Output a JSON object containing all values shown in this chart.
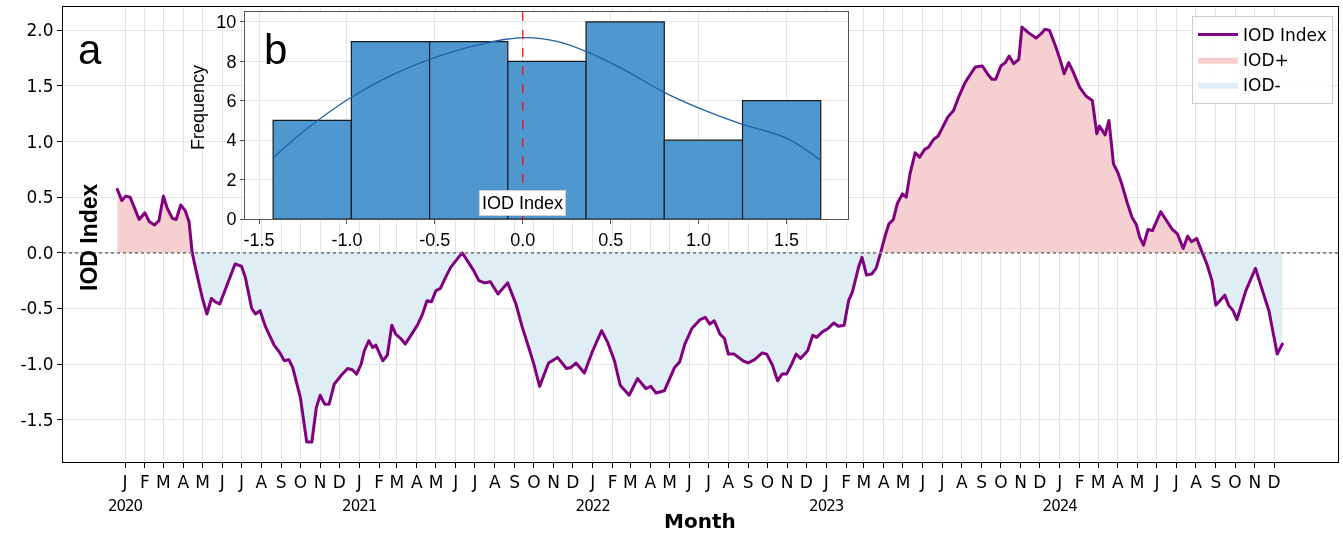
{
  "chart_data": [
    {
      "type": "line",
      "xlabel": "Month",
      "ylabel": "IOD Index",
      "annotations": [
        "a"
      ],
      "grid": true,
      "legend": "top right",
      "xlim": [
        "2019-09-26",
        "2025-03-11"
      ],
      "ylim": [
        -1.88,
        2.21
      ],
      "xticks": [
        {
          "value": "2020-01",
          "label": "J\n2020"
        },
        {
          "value": "2020-02",
          "label": "F"
        },
        {
          "value": "2020-03",
          "label": "M"
        },
        {
          "value": "2020-04",
          "label": "A"
        },
        {
          "value": "2020-05",
          "label": "M"
        },
        {
          "value": "2020-06",
          "label": "J"
        },
        {
          "value": "2020-07",
          "label": "J"
        },
        {
          "value": "2020-08",
          "label": "A"
        },
        {
          "value": "2020-09",
          "label": "S"
        },
        {
          "value": "2020-10",
          "label": "O"
        },
        {
          "value": "2020-11",
          "label": "N"
        },
        {
          "value": "2020-12",
          "label": "D"
        },
        {
          "value": "2021-01",
          "label": "J\n2021"
        },
        {
          "value": "2021-02",
          "label": "F"
        },
        {
          "value": "2021-03",
          "label": "M"
        },
        {
          "value": "2021-04",
          "label": "A"
        },
        {
          "value": "2021-05",
          "label": "M"
        },
        {
          "value": "2021-06",
          "label": "J"
        },
        {
          "value": "2021-07",
          "label": "J"
        },
        {
          "value": "2021-08",
          "label": "A"
        },
        {
          "value": "2021-09",
          "label": "S"
        },
        {
          "value": "2021-10",
          "label": "O"
        },
        {
          "value": "2021-11",
          "label": "N"
        },
        {
          "value": "2021-12",
          "label": "D"
        },
        {
          "value": "2022-01",
          "label": "J\n2022"
        },
        {
          "value": "2022-02",
          "label": "F"
        },
        {
          "value": "2022-03",
          "label": "M"
        },
        {
          "value": "2022-04",
          "label": "A"
        },
        {
          "value": "2022-05",
          "label": "M"
        },
        {
          "value": "2022-06",
          "label": "J"
        },
        {
          "value": "2022-07",
          "label": "J"
        },
        {
          "value": "2022-08",
          "label": "A"
        },
        {
          "value": "2022-09",
          "label": "S"
        },
        {
          "value": "2022-10",
          "label": "O"
        },
        {
          "value": "2022-11",
          "label": "N"
        },
        {
          "value": "2022-12",
          "label": "D"
        },
        {
          "value": "2023-01",
          "label": "J\n2023"
        },
        {
          "value": "2023-02",
          "label": "F"
        },
        {
          "value": "2023-03",
          "label": "M"
        },
        {
          "value": "2023-04",
          "label": "A"
        },
        {
          "value": "2023-05",
          "label": "M"
        },
        {
          "value": "2023-06",
          "label": "J"
        },
        {
          "value": "2023-07",
          "label": "J"
        },
        {
          "value": "2023-08",
          "label": "A"
        },
        {
          "value": "2023-09",
          "label": "S"
        },
        {
          "value": "2023-10",
          "label": "O"
        },
        {
          "value": "2023-11",
          "label": "N"
        },
        {
          "value": "2023-12",
          "label": "D"
        },
        {
          "value": "2024-01",
          "label": "J\n2024"
        },
        {
          "value": "2024-02",
          "label": "F"
        },
        {
          "value": "2024-03",
          "label": "M"
        },
        {
          "value": "2024-04",
          "label": "A"
        },
        {
          "value": "2024-05",
          "label": "M"
        },
        {
          "value": "2024-06",
          "label": "J"
        },
        {
          "value": "2024-07",
          "label": "J"
        },
        {
          "value": "2024-08",
          "label": "A"
        },
        {
          "value": "2024-09",
          "label": "S"
        },
        {
          "value": "2024-10",
          "label": "O"
        },
        {
          "value": "2024-11",
          "label": "N"
        },
        {
          "value": "2024-12",
          "label": "D"
        }
      ],
      "yticks": [
        {
          "value": 2,
          "label": "2.0"
        },
        1.5,
        {
          "value": 1,
          "label": "1.0"
        },
        0.5,
        {
          "value": 0,
          "label": "0.0"
        },
        -0.5,
        {
          "value": -1,
          "label": "-1.0"
        },
        -1.5
      ],
      "ref_lines": [
        {
          "axis": "y",
          "value": 0,
          "color": "#808080",
          "line_style": "dotted"
        }
      ],
      "x": [
        "2019-12-20",
        "2019-12-27",
        "2020-01-02",
        "2020-01-09",
        "2020-01-16",
        "2020-01-23",
        "2020-02-01",
        "2020-02-08",
        "2020-02-16",
        "2020-02-23",
        "2020-03-01",
        "2020-03-07",
        "2020-03-15",
        "2020-03-21",
        "2020-03-28",
        "2020-04-04",
        "2020-04-10",
        "2020-04-15",
        "2020-04-21",
        "2020-05-01",
        "2020-05-08",
        "2020-05-15",
        "2020-05-21",
        "2020-05-28",
        "2020-06-09",
        "2020-06-21",
        "2020-07-01",
        "2020-07-07",
        "2020-07-17",
        "2020-07-23",
        "2020-07-30",
        "2020-08-08",
        "2020-08-21",
        "2020-08-29",
        "2020-09-06",
        "2020-09-13",
        "2020-09-19",
        "2020-10-01",
        "2020-10-11",
        "2020-10-19",
        "2020-10-26",
        "2020-11-01",
        "2020-11-08",
        "2020-11-15",
        "2020-11-23",
        "2020-12-04",
        "2020-12-14",
        "2020-12-21",
        "2020-12-28",
        "2021-01-04",
        "2021-01-09",
        "2021-01-16",
        "2021-01-22",
        "2021-01-27",
        "2021-02-07",
        "2021-02-14",
        "2021-02-21",
        "2021-02-27",
        "2021-03-07",
        "2021-03-14",
        "2021-03-23",
        "2021-04-02",
        "2021-04-10",
        "2021-04-17",
        "2021-04-24",
        "2021-05-01",
        "2021-05-08",
        "2021-05-16",
        "2021-05-24",
        "2021-06-04",
        "2021-06-11",
        "2021-06-19",
        "2021-06-29",
        "2021-07-07",
        "2021-07-16",
        "2021-07-25",
        "2021-08-06",
        "2021-08-21",
        "2021-09-03",
        "2021-09-13",
        "2021-09-23",
        "2021-10-01",
        "2021-10-10",
        "2021-10-24",
        "2021-11-07",
        "2021-11-21",
        "2021-11-28",
        "2021-12-06",
        "2021-12-19",
        "2022-01-01",
        "2022-01-15",
        "2022-01-24",
        "2022-02-04",
        "2022-02-13",
        "2022-02-27",
        "2022-03-12",
        "2022-03-25",
        "2022-04-02",
        "2022-04-10",
        "2022-04-23",
        "2022-05-09",
        "2022-05-17",
        "2022-05-25",
        "2022-06-05",
        "2022-06-18",
        "2022-06-26",
        "2022-07-03",
        "2022-07-10",
        "2022-07-19",
        "2022-07-26",
        "2022-08-01",
        "2022-08-10",
        "2022-08-24",
        "2022-09-01",
        "2022-09-11",
        "2022-09-23",
        "2022-09-30",
        "2022-10-09",
        "2022-10-17",
        "2022-10-24",
        "2022-10-31",
        "2022-11-08",
        "2022-11-15",
        "2022-11-22",
        "2022-12-03",
        "2022-12-11",
        "2022-12-17",
        "2022-12-26",
        "2023-01-04",
        "2023-01-13",
        "2023-01-20",
        "2023-01-29",
        "2023-02-05",
        "2023-02-11",
        "2023-02-21",
        "2023-02-26",
        "2023-03-05",
        "2023-03-13",
        "2023-03-20",
        "2023-03-27",
        "2023-04-04",
        "2023-04-09",
        "2023-04-16",
        "2023-04-22",
        "2023-04-30",
        "2023-05-06",
        "2023-05-12",
        "2023-05-20",
        "2023-05-27",
        "2023-06-04",
        "2023-06-10",
        "2023-06-18",
        "2023-06-25",
        "2023-07-03",
        "2023-07-10",
        "2023-07-19",
        "2023-07-27",
        "2023-08-06",
        "2023-08-15",
        "2023-08-22",
        "2023-09-02",
        "2023-09-10",
        "2023-09-17",
        "2023-09-23",
        "2023-10-01",
        "2023-10-08",
        "2023-10-14",
        "2023-10-21",
        "2023-10-29",
        "2023-11-03",
        "2023-11-13",
        "2023-11-25",
        "2023-12-03",
        "2023-12-09",
        "2023-12-16",
        "2023-12-26",
        "2024-01-03",
        "2024-01-08",
        "2024-01-15",
        "2024-01-21",
        "2024-02-01",
        "2024-02-11",
        "2024-02-21",
        "2024-02-28",
        "2024-03-03",
        "2024-03-12",
        "2024-03-18",
        "2024-03-25",
        "2024-04-01",
        "2024-04-07",
        "2024-04-15",
        "2024-04-23",
        "2024-04-30",
        "2024-05-05",
        "2024-05-11",
        "2024-05-18",
        "2024-05-25",
        "2024-06-07",
        "2024-06-16",
        "2024-06-25",
        "2024-07-03",
        "2024-07-12",
        "2024-07-19",
        "2024-07-25",
        "2024-08-02",
        "2024-08-11",
        "2024-08-18",
        "2024-08-26",
        "2024-09-01",
        "2024-09-15",
        "2024-09-21",
        "2024-09-28",
        "2024-10-04",
        "2024-10-18",
        "2024-11-02",
        "2024-11-13",
        "2024-11-23",
        "2024-12-06",
        "2024-12-14"
      ],
      "series": [
        {
          "name": "IOD Index",
          "type": "line",
          "color": "#800080",
          "values": [
            0.57,
            0.47,
            0.51,
            0.5,
            0.4,
            0.3,
            0.36,
            0.28,
            0.25,
            0.29,
            0.51,
            0.4,
            0.31,
            0.3,
            0.43,
            0.38,
            0.28,
            0,
            -0.16,
            -0.41,
            -0.55,
            -0.41,
            -0.44,
            -0.46,
            -0.28,
            -0.1,
            -0.12,
            -0.22,
            -0.5,
            -0.55,
            -0.52,
            -0.67,
            -0.83,
            -0.89,
            -0.97,
            -0.96,
            -1.03,
            -1.3,
            -1.7,
            -1.7,
            -1.39,
            -1.28,
            -1.36,
            -1.36,
            -1.18,
            -1.1,
            -1.04,
            -1.05,
            -1.09,
            -1.0,
            -0.88,
            -0.79,
            -0.85,
            -0.83,
            -0.97,
            -0.92,
            -0.65,
            -0.73,
            -0.77,
            -0.82,
            -0.74,
            -0.65,
            -0.55,
            -0.43,
            -0.44,
            -0.34,
            -0.32,
            -0.22,
            -0.13,
            -0.05,
            0,
            -0.07,
            -0.16,
            -0.25,
            -0.27,
            -0.26,
            -0.37,
            -0.27,
            -0.46,
            -0.67,
            -0.85,
            -1.0,
            -1.2,
            -0.99,
            -0.94,
            -1.04,
            -1.03,
            -0.99,
            -1.08,
            -0.88,
            -0.7,
            -0.8,
            -0.97,
            -1.19,
            -1.28,
            -1.13,
            -1.22,
            -1.2,
            -1.26,
            -1.24,
            -1.03,
            -0.98,
            -0.82,
            -0.68,
            -0.6,
            -0.58,
            -0.64,
            -0.61,
            -0.73,
            -0.77,
            -0.91,
            -0.91,
            -0.97,
            -0.99,
            -0.96,
            -0.9,
            -0.91,
            -1.01,
            -1.15,
            -1.09,
            -1.09,
            -1.0,
            -0.91,
            -0.95,
            -0.88,
            -0.74,
            -0.76,
            -0.71,
            -0.68,
            -0.63,
            -0.66,
            -0.65,
            -0.43,
            -0.35,
            -0.12,
            -0.04,
            -0.2,
            -0.19,
            -0.14,
            0,
            0.17,
            0.26,
            0.3,
            0.44,
            0.53,
            0.5,
            0.71,
            0.9,
            0.86,
            0.93,
            0.95,
            1.02,
            1.05,
            1.14,
            1.22,
            1.28,
            1.4,
            1.53,
            1.61,
            1.67,
            1.68,
            1.61,
            1.56,
            1.56,
            1.68,
            1.71,
            1.77,
            1.7,
            1.74,
            2.03,
            1.98,
            1.93,
            1.97,
            2.01,
            2.0,
            1.85,
            1.71,
            1.61,
            1.71,
            1.64,
            1.49,
            1.41,
            1.37,
            1.07,
            1.14,
            1.06,
            1.19,
            0.8,
            0.72,
            0.62,
            0.46,
            0.32,
            0.25,
            0.14,
            0.07,
            0.21,
            0.2,
            0.37,
            0.29,
            0.21,
            0.17,
            0.04,
            0.15,
            0.1,
            0.13,
            0,
            -0.1,
            -0.25,
            -0.47,
            -0.38,
            -0.47,
            -0.52,
            -0.6,
            -0.34,
            -0.14,
            -0.34,
            -0.52,
            -0.91,
            -0.82
          ]
        },
        {
          "name": "IOD+",
          "type": "area",
          "color": "#f6d0d0",
          "x": [
            "2019-12-20",
            "2019-12-27",
            "2020-01-02",
            "2020-01-09",
            "2020-01-16",
            "2020-01-23",
            "2020-02-01",
            "2020-02-08",
            "2020-02-16",
            "2020-02-23",
            "2020-03-01",
            "2020-03-07",
            "2020-03-15",
            "2020-03-21",
            "2020-03-28",
            "2020-04-04",
            "2020-04-10",
            "2020-04-15",
            "2023-03-27",
            "2023-04-04",
            "2023-04-09",
            "2023-04-16",
            "2023-04-22",
            "2023-04-30",
            "2023-05-06",
            "2023-05-12",
            "2023-05-20",
            "2023-05-27",
            "2023-06-04",
            "2023-06-10",
            "2023-06-18",
            "2023-06-25",
            "2023-07-03",
            "2023-07-10",
            "2023-07-19",
            "2023-07-27",
            "2023-08-06",
            "2023-08-15",
            "2023-08-22",
            "2023-09-02",
            "2023-09-10",
            "2023-09-17",
            "2023-09-23",
            "2023-10-01",
            "2023-10-08",
            "2023-10-14",
            "2023-10-21",
            "2023-10-29",
            "2023-11-03",
            "2023-11-13",
            "2023-11-25",
            "2023-12-03",
            "2023-12-09",
            "2023-12-16",
            "2023-12-26",
            "2024-01-03",
            "2024-01-08",
            "2024-01-15",
            "2024-01-21",
            "2024-02-01",
            "2024-02-11",
            "2024-02-21",
            "2024-02-28",
            "2024-03-03",
            "2024-03-12",
            "2024-03-18",
            "2024-03-25",
            "2024-04-01",
            "2024-04-07",
            "2024-04-15",
            "2024-04-23",
            "2024-04-30",
            "2024-05-05",
            "2024-05-11",
            "2024-05-18",
            "2024-05-25",
            "2024-06-07",
            "2024-06-16",
            "2024-06-25",
            "2024-07-03",
            "2024-07-12",
            "2024-07-19",
            "2024-07-25",
            "2024-08-02",
            "2024-08-11"
          ],
          "values": [
            0.57,
            0.47,
            0.51,
            0.5,
            0.4,
            0.3,
            0.36,
            0.28,
            0.25,
            0.29,
            0.51,
            0.4,
            0.31,
            0.3,
            0.43,
            0.38,
            0.28,
            0,
            0,
            0.17,
            0.26,
            0.3,
            0.44,
            0.53,
            0.5,
            0.71,
            0.9,
            0.86,
            0.93,
            0.95,
            1.02,
            1.05,
            1.14,
            1.22,
            1.28,
            1.4,
            1.53,
            1.61,
            1.67,
            1.68,
            1.61,
            1.56,
            1.56,
            1.68,
            1.71,
            1.77,
            1.7,
            1.74,
            2.03,
            1.98,
            1.93,
            1.97,
            2.01,
            2.0,
            1.85,
            1.71,
            1.61,
            1.71,
            1.64,
            1.49,
            1.41,
            1.37,
            1.07,
            1.14,
            1.06,
            1.19,
            0.8,
            0.72,
            0.62,
            0.46,
            0.32,
            0.25,
            0.14,
            0.07,
            0.21,
            0.2,
            0.37,
            0.29,
            0.21,
            0.17,
            0.04,
            0.15,
            0.1,
            0.13,
            0
          ]
        },
        {
          "name": "IOD-",
          "type": "area",
          "color": "#deeef4",
          "x": [
            "2020-04-15",
            "2020-04-21",
            "2020-05-01",
            "2020-05-08",
            "2020-05-15",
            "2020-05-21",
            "2020-05-28",
            "2020-06-09",
            "2020-06-21",
            "2020-07-01",
            "2020-07-07",
            "2020-07-17",
            "2020-07-23",
            "2020-07-30",
            "2020-08-08",
            "2020-08-21",
            "2020-08-29",
            "2020-09-06",
            "2020-09-13",
            "2020-09-19",
            "2020-10-01",
            "2020-10-11",
            "2020-10-19",
            "2020-10-26",
            "2020-11-01",
            "2020-11-08",
            "2020-11-15",
            "2020-11-23",
            "2020-12-04",
            "2020-12-14",
            "2020-12-21",
            "2020-12-28",
            "2021-01-04",
            "2021-01-09",
            "2021-01-16",
            "2021-01-22",
            "2021-01-27",
            "2021-02-07",
            "2021-02-14",
            "2021-02-21",
            "2021-02-27",
            "2021-03-07",
            "2021-03-14",
            "2021-03-23",
            "2021-04-02",
            "2021-04-10",
            "2021-04-17",
            "2021-04-24",
            "2021-05-01",
            "2021-05-08",
            "2021-05-16",
            "2021-05-24",
            "2021-06-04",
            "2021-06-11",
            "2021-06-19",
            "2021-06-29",
            "2021-07-07",
            "2021-07-16",
            "2021-07-25",
            "2021-08-06",
            "2021-08-21",
            "2021-09-03",
            "2021-09-13",
            "2021-09-23",
            "2021-10-01",
            "2021-10-10",
            "2021-10-24",
            "2021-11-07",
            "2021-11-21",
            "2021-11-28",
            "2021-12-06",
            "2021-12-19",
            "2022-01-01",
            "2022-01-15",
            "2022-01-24",
            "2022-02-04",
            "2022-02-13",
            "2022-02-27",
            "2022-03-12",
            "2022-03-25",
            "2022-04-02",
            "2022-04-10",
            "2022-04-23",
            "2022-05-09",
            "2022-05-17",
            "2022-05-25",
            "2022-06-05",
            "2022-06-18",
            "2022-06-26",
            "2022-07-03",
            "2022-07-10",
            "2022-07-19",
            "2022-07-26",
            "2022-08-01",
            "2022-08-10",
            "2022-08-24",
            "2022-09-01",
            "2022-09-11",
            "2022-09-23",
            "2022-09-30",
            "2022-10-09",
            "2022-10-17",
            "2022-10-24",
            "2022-10-31",
            "2022-11-08",
            "2022-11-15",
            "2022-11-22",
            "2022-12-03",
            "2022-12-11",
            "2022-12-17",
            "2022-12-26",
            "2023-01-04",
            "2023-01-13",
            "2023-01-20",
            "2023-01-29",
            "2023-02-05",
            "2023-02-11",
            "2023-02-21",
            "2023-02-26",
            "2023-03-05",
            "2023-03-13",
            "2023-03-20",
            "2023-03-27",
            "2024-08-11",
            "2024-08-18",
            "2024-08-26",
            "2024-09-01",
            "2024-09-15",
            "2024-09-21",
            "2024-09-28",
            "2024-10-04",
            "2024-10-18",
            "2024-11-02",
            "2024-11-13",
            "2024-11-23",
            "2024-12-06",
            "2024-12-14"
          ],
          "values": [
            0,
            -0.16,
            -0.41,
            -0.55,
            -0.41,
            -0.44,
            -0.46,
            -0.28,
            -0.1,
            -0.12,
            -0.22,
            -0.5,
            -0.55,
            -0.52,
            -0.67,
            -0.83,
            -0.89,
            -0.97,
            -0.96,
            -1.03,
            -1.3,
            -1.7,
            -1.7,
            -1.39,
            -1.28,
            -1.36,
            -1.36,
            -1.18,
            -1.1,
            -1.04,
            -1.05,
            -1.09,
            -1.0,
            -0.88,
            -0.79,
            -0.85,
            -0.83,
            -0.97,
            -0.92,
            -0.65,
            -0.73,
            -0.77,
            -0.82,
            -0.74,
            -0.65,
            -0.55,
            -0.43,
            -0.44,
            -0.34,
            -0.32,
            -0.22,
            -0.13,
            -0.05,
            0,
            -0.07,
            -0.16,
            -0.25,
            -0.27,
            -0.26,
            -0.37,
            -0.27,
            -0.46,
            -0.67,
            -0.85,
            -1.0,
            -1.2,
            -0.99,
            -0.94,
            -1.04,
            -1.03,
            -0.99,
            -1.08,
            -0.88,
            -0.7,
            -0.8,
            -0.97,
            -1.19,
            -1.28,
            -1.13,
            -1.22,
            -1.2,
            -1.26,
            -1.24,
            -1.03,
            -0.98,
            -0.82,
            -0.68,
            -0.6,
            -0.58,
            -0.64,
            -0.61,
            -0.73,
            -0.77,
            -0.91,
            -0.91,
            -0.97,
            -0.99,
            -0.96,
            -0.9,
            -0.91,
            -1.01,
            -1.15,
            -1.09,
            -1.09,
            -1.0,
            -0.91,
            -0.95,
            -0.88,
            -0.74,
            -0.76,
            -0.71,
            -0.68,
            -0.63,
            -0.66,
            -0.65,
            -0.43,
            -0.35,
            -0.12,
            -0.04,
            -0.2,
            -0.19,
            -0.14,
            0,
            0,
            -0.1,
            -0.25,
            -0.47,
            -0.38,
            -0.47,
            -0.52,
            -0.6,
            -0.34,
            -0.14,
            -0.34,
            -0.52,
            -0.91,
            -0.82
          ]
        }
      ]
    },
    {
      "type": "histogram",
      "ylabel": "Frequency",
      "annotations": [
        "b"
      ],
      "grid": true,
      "color": "#4f98cf",
      "bins": [
        -1.42,
        -0.975,
        -0.53,
        -0.085,
        0.36,
        0.805,
        1.25,
        1.695
      ],
      "values": [
        5,
        9,
        9,
        8,
        10,
        4,
        6
      ],
      "xlim": [
        -1.58,
        1.85
      ],
      "ylim": [
        0,
        10.5
      ],
      "xticks": [
        -1.5,
        {
          "value": -1,
          "label": "-1.0"
        },
        -0.5,
        {
          "value": 0,
          "label": "0.0"
        },
        0.5,
        {
          "value": 1,
          "label": "1.0"
        },
        1.5
      ],
      "yticks": [
        0,
        2,
        4,
        6,
        8,
        10
      ],
      "ref_lines": [
        {
          "axis": "x",
          "value": 0,
          "label": "IOD Index",
          "color": "#ff0000",
          "line_style": "dashed"
        }
      ],
      "series": [
        {
          "type": "line",
          "color": "#1f62a6",
          "x": [
            -1.42,
            -1.21,
            -0.97,
            -0.72,
            -0.53,
            -0.27,
            0,
            0.2,
            0.36,
            0.59,
            0.81,
            1.01,
            1.25,
            1.5,
            1.69
          ],
          "values": [
            3.1,
            4.7,
            6.2,
            7.4,
            8.1,
            8.8,
            9.2,
            9.0,
            8.5,
            7.5,
            6.4,
            5.6,
            4.8,
            4.1,
            3.0
          ]
        }
      ]
    }
  ]
}
